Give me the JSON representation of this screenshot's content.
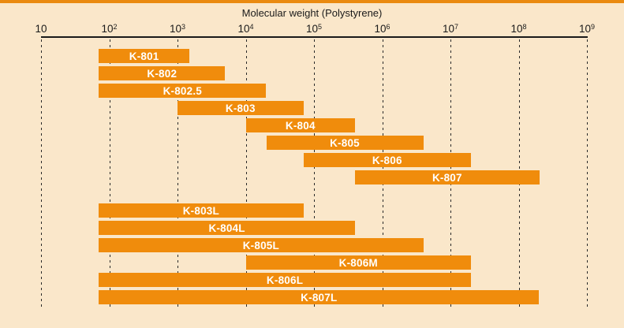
{
  "title": "Molecular weight (Polystyrene)",
  "colors": {
    "background": "#FAE7CA",
    "bar": "#F08C0C",
    "top_strip": "#EA8A10",
    "axis": "#1A1A1A",
    "bar_label": "#FFFFFF",
    "gridline": "#2A2A2A"
  },
  "chart_data": {
    "type": "bar",
    "subtype": "horizontal-log-range",
    "title": "Molecular weight (Polystyrene)",
    "axis": {
      "label": "Molecular weight (Polystyrene)",
      "scale": "log10",
      "min": 10,
      "max": 1000000000,
      "gridlines": "dashed-vertical",
      "ticks": [
        {
          "value": 10,
          "base": "10",
          "exp": ""
        },
        {
          "value": 100,
          "base": "10",
          "exp": "2"
        },
        {
          "value": 1000,
          "base": "10",
          "exp": "3"
        },
        {
          "value": 10000,
          "base": "10",
          "exp": "4"
        },
        {
          "value": 100000,
          "base": "10",
          "exp": "5"
        },
        {
          "value": 1000000,
          "base": "10",
          "exp": "6"
        },
        {
          "value": 10000000,
          "base": "10",
          "exp": "7"
        },
        {
          "value": 100000000,
          "base": "10",
          "exp": "8"
        },
        {
          "value": 1000000000,
          "base": "10",
          "exp": "9"
        }
      ]
    },
    "series": [
      {
        "label": "K-801",
        "min": 70,
        "max": 1500,
        "group": 1
      },
      {
        "label": "K-802",
        "min": 70,
        "max": 5000,
        "group": 1
      },
      {
        "label": "K-802.5",
        "min": 70,
        "max": 20000,
        "group": 1
      },
      {
        "label": "K-803",
        "min": 1000,
        "max": 70000,
        "group": 1
      },
      {
        "label": "K-804",
        "min": 10000,
        "max": 400000,
        "group": 1
      },
      {
        "label": "K-805",
        "min": 20000,
        "max": 4000000,
        "group": 1
      },
      {
        "label": "K-806",
        "min": 70000,
        "max": 20000000,
        "group": 1
      },
      {
        "label": "K-807",
        "min": 400000,
        "max": 200000000,
        "group": 1
      },
      {
        "label": "K-803L",
        "min": 70,
        "max": 70000,
        "group": 2
      },
      {
        "label": "K-804L",
        "min": 70,
        "max": 400000,
        "group": 2
      },
      {
        "label": "K-805L",
        "min": 70,
        "max": 4000000,
        "group": 2
      },
      {
        "label": "K-806M",
        "min": 10000,
        "max": 20000000,
        "group": 2
      },
      {
        "label": "K-806L",
        "min": 70,
        "max": 20000000,
        "group": 2
      },
      {
        "label": "K-807L",
        "min": 70,
        "max": 200000000,
        "group": 2
      }
    ]
  }
}
